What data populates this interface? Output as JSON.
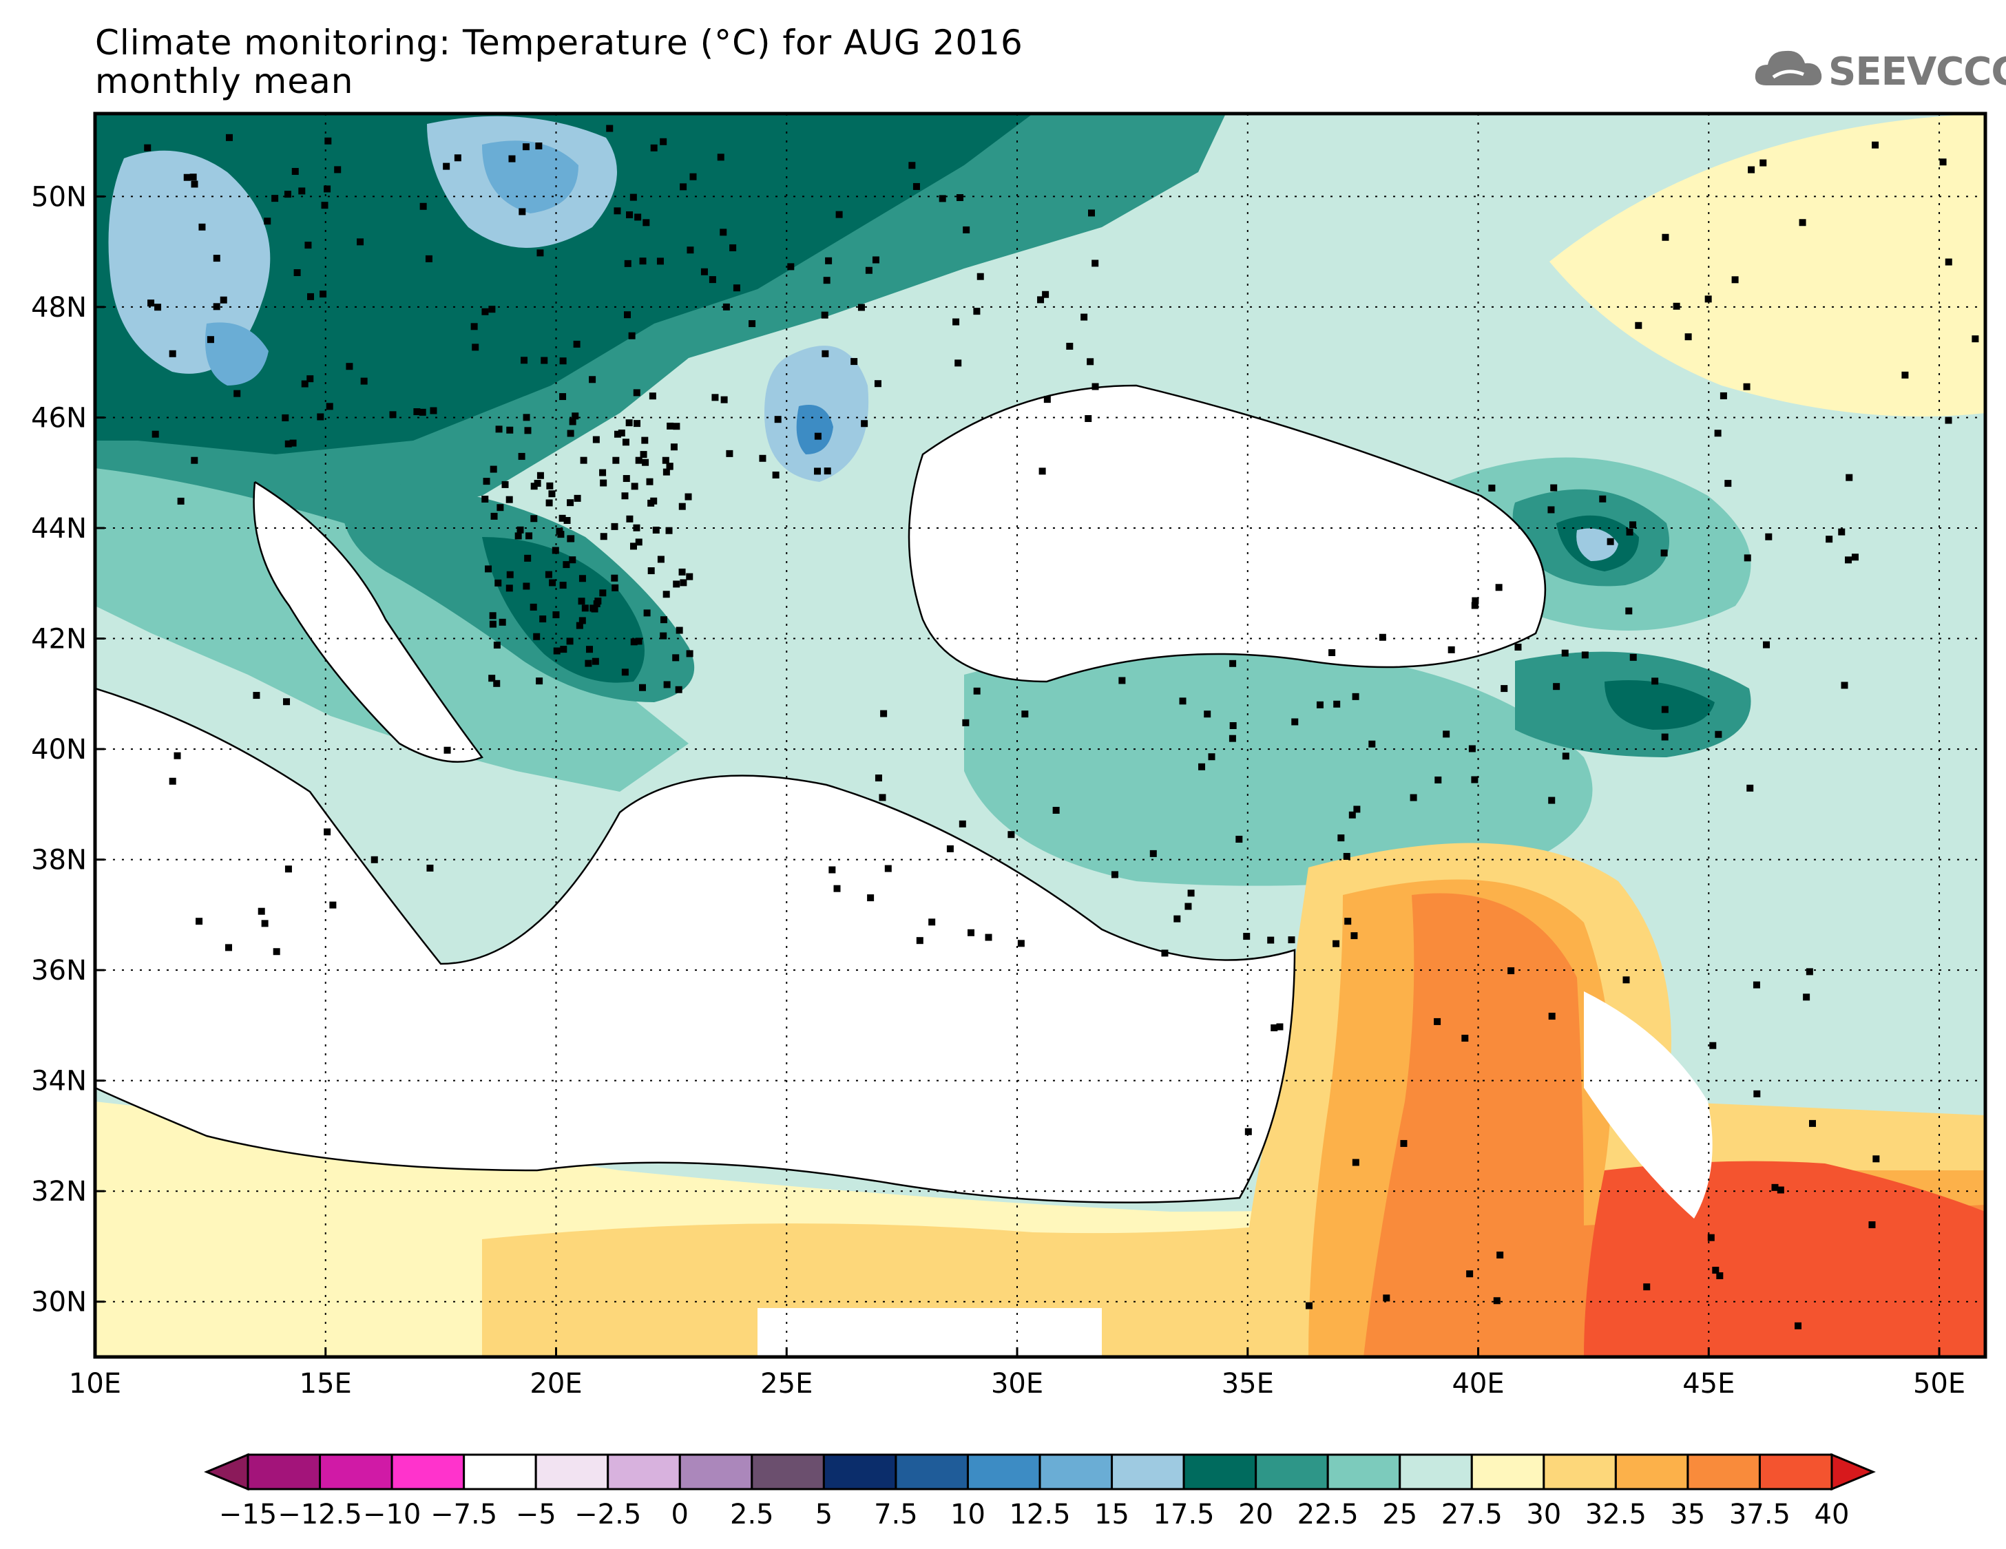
{
  "title": {
    "line1": "Climate monitoring: Temperature (°C) for AUG 2016",
    "line2": "monthly mean"
  },
  "logo": {
    "text": "SEEVCCC",
    "icon": "cloud-icon"
  },
  "map": {
    "lon_range": [
      10,
      51
    ],
    "lat_range": [
      29,
      51.5
    ],
    "x_ticks": [
      "10E",
      "15E",
      "20E",
      "25E",
      "30E",
      "35E",
      "40E",
      "45E",
      "50E"
    ],
    "y_ticks": [
      "30N",
      "32N",
      "34N",
      "36N",
      "38N",
      "40N",
      "42N",
      "44N",
      "46N",
      "48N",
      "50N"
    ],
    "grid": "dotted"
  },
  "colorbar": {
    "labels": [
      "−15",
      "−12.5",
      "−10",
      "−7.5",
      "−5",
      "−2.5",
      "0",
      "2.5",
      "5",
      "7.5",
      "10",
      "12.5",
      "15",
      "17.5",
      "20",
      "22.5",
      "25",
      "27.5",
      "30",
      "32.5",
      "35",
      "37.5",
      "40"
    ],
    "colors": [
      "#8b1a5a",
      "#a3147a",
      "#d01aa6",
      "#ff33cc",
      "#ffffff",
      "#f2e3f2",
      "#d8b2de",
      "#ab87bb",
      "#6b4f6e",
      "#0b2d6b",
      "#1f5c99",
      "#3d8cc4",
      "#6aadd5",
      "#9ecae1",
      "#006b5e",
      "#2e9688",
      "#7ccbbc",
      "#c7e9e0",
      "#fff7bc",
      "#fdd77a",
      "#fcb14a",
      "#f98b3b",
      "#f4542f",
      "#d7191c"
    ]
  },
  "stations": "black-square-markers"
}
